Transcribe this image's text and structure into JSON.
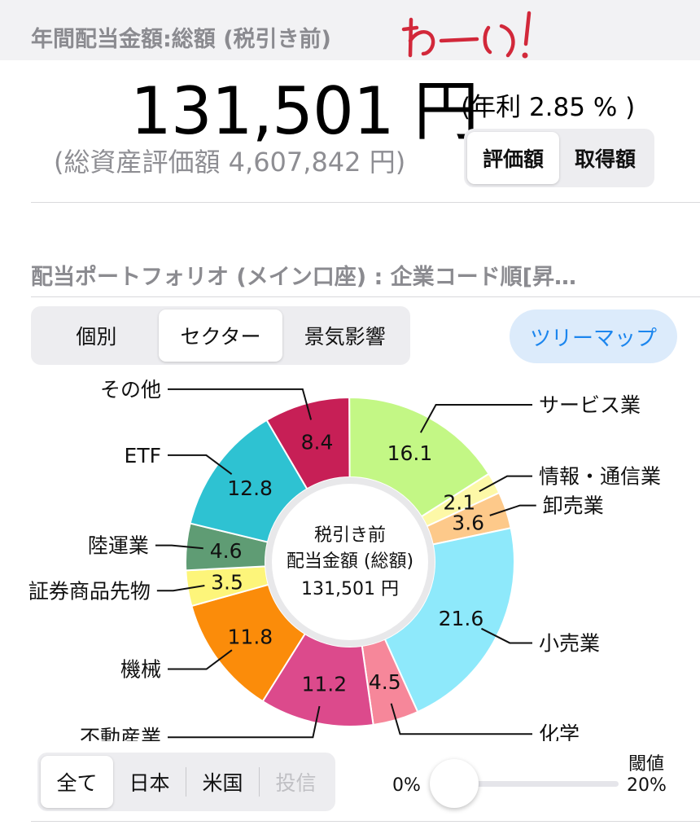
{
  "header": {
    "title": "年間配当金額:総額 (税引き前)",
    "handwritten_note": "わ〜い!",
    "amount": "131,501 円",
    "yield": "(年利 2.85 % )",
    "total_assets": "(総資産評価額 4,607,842 円)",
    "value_toggle": [
      {
        "label": "評価額",
        "selected": true
      },
      {
        "label": "取得額",
        "selected": false
      }
    ]
  },
  "portfolio": {
    "title": "配当ポートフォリオ (メイン口座) : 企業コード順[昇…",
    "view_tabs": [
      {
        "label": "個別",
        "selected": false
      },
      {
        "label": "セクター",
        "selected": true
      },
      {
        "label": "景気影響",
        "selected": false
      }
    ],
    "treemap_button": "ツリーマップ"
  },
  "chart_data": {
    "type": "pie",
    "donut": true,
    "center_text": [
      "税引き前",
      "配当金額 (総額)",
      "131,501 円"
    ],
    "unit": "%",
    "slices": [
      {
        "label": "サービス業",
        "value": 16.1,
        "color": "#c3f785"
      },
      {
        "label": "情報・通信業",
        "value": 2.1,
        "color": "#fdf8a7"
      },
      {
        "label": "卸売業",
        "value": 3.6,
        "color": "#fdc98a"
      },
      {
        "label": "小売業",
        "value": 21.6,
        "color": "#8ee9fb"
      },
      {
        "label": "化学",
        "value": 4.5,
        "color": "#f6879a"
      },
      {
        "label": "不動産業",
        "value": 11.2,
        "color": "#dc4a8c"
      },
      {
        "label": "機械",
        "value": 11.8,
        "color": "#fb8c0a"
      },
      {
        "label": "証券商品先物",
        "value": 3.5,
        "color": "#fdf57a"
      },
      {
        "label": "陸運業",
        "value": 4.6,
        "color": "#5f9c74"
      },
      {
        "label": "ETF",
        "value": 12.8,
        "color": "#2ec2d2"
      },
      {
        "label": "その他",
        "value": 8.4,
        "color": "#c71f56"
      }
    ]
  },
  "filters": {
    "region_tabs": [
      {
        "label": "全て",
        "selected": true,
        "disabled": false
      },
      {
        "label": "日本",
        "selected": false,
        "disabled": false
      },
      {
        "label": "米国",
        "selected": false,
        "disabled": false
      },
      {
        "label": "投信",
        "selected": false,
        "disabled": true
      }
    ],
    "threshold_label": "閾値",
    "slider_min": "0%",
    "slider_max": "20%",
    "slider_value_fraction": 0.12
  }
}
